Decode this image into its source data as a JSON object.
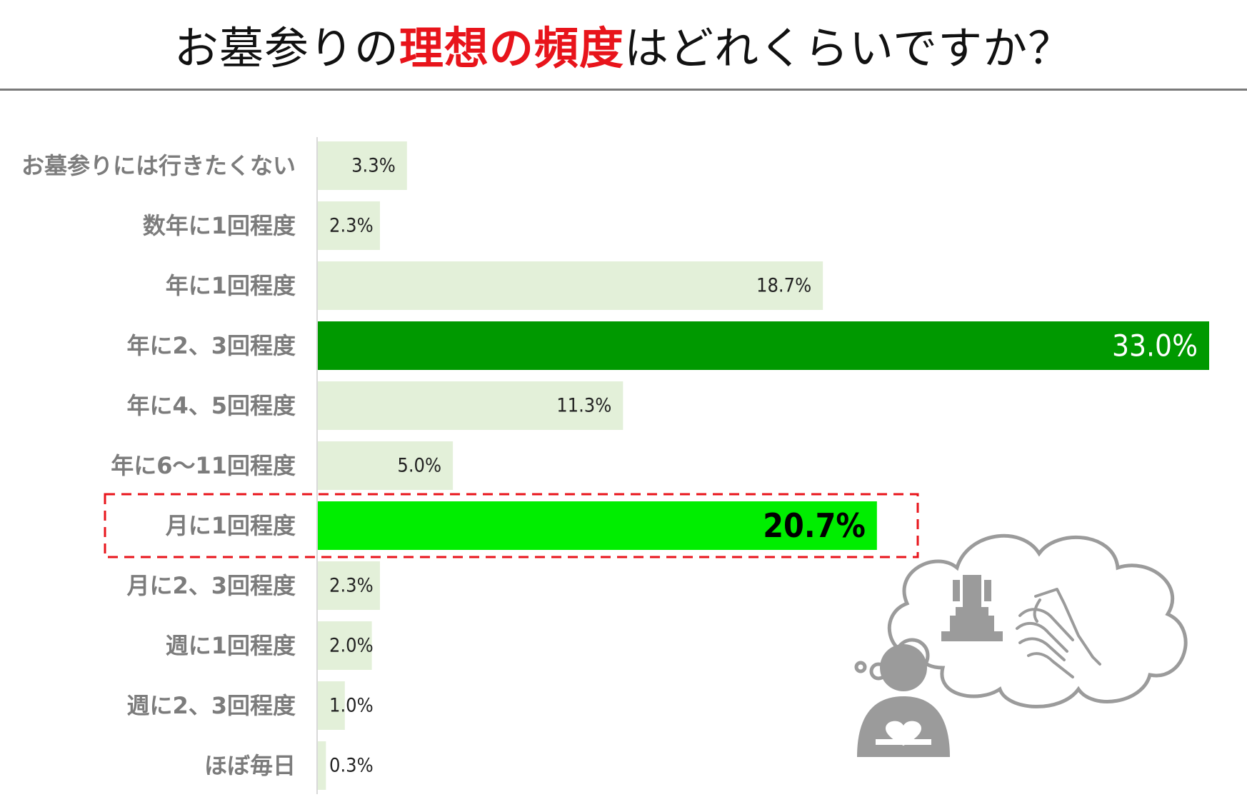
{
  "title": {
    "pre": "お墓参りの",
    "highlight": "理想の頻度",
    "post": "はどれくらいですか？"
  },
  "chart_data": {
    "type": "bar",
    "orientation": "horizontal",
    "title": "お墓参りの理想の頻度はどれくらいですか？",
    "categories": [
      "お墓参りには行きたくない",
      "数年に1回程度",
      "年に1回程度",
      "年に2、3回程度",
      "年に4、5回程度",
      "年に6～11回程度",
      "月に1回程度",
      "月に2、3回程度",
      "週に1回程度",
      "週に2、3回程度",
      "ほぼ毎日"
    ],
    "values": [
      3.3,
      2.3,
      18.7,
      33.0,
      11.3,
      5.0,
      20.7,
      2.3,
      2.0,
      1.0,
      0.3
    ],
    "value_labels": [
      "3.3%",
      "2.3%",
      "18.7%",
      "33.0%",
      "11.3%",
      "5.0%",
      "20.7%",
      "2.3%",
      "2.0%",
      "1.0%",
      "0.3%"
    ],
    "unit": "%",
    "xlim": [
      0,
      33.0
    ],
    "grid": false,
    "highlighted_categories": [
      "年に2、3回程度",
      "月に1回程度"
    ],
    "boxed_category": "月に1回程度",
    "colors": {
      "default_bar": "#e3f0d9",
      "highlight_dark": "#009900",
      "highlight_bright": "#00ee00",
      "dashed_box": "#e8141b"
    }
  },
  "illustration": {
    "icons": [
      "person-icon",
      "thought-bubble-icon",
      "gravestone-icon",
      "praying-hands-icon"
    ],
    "color": "#9b9b9b"
  }
}
